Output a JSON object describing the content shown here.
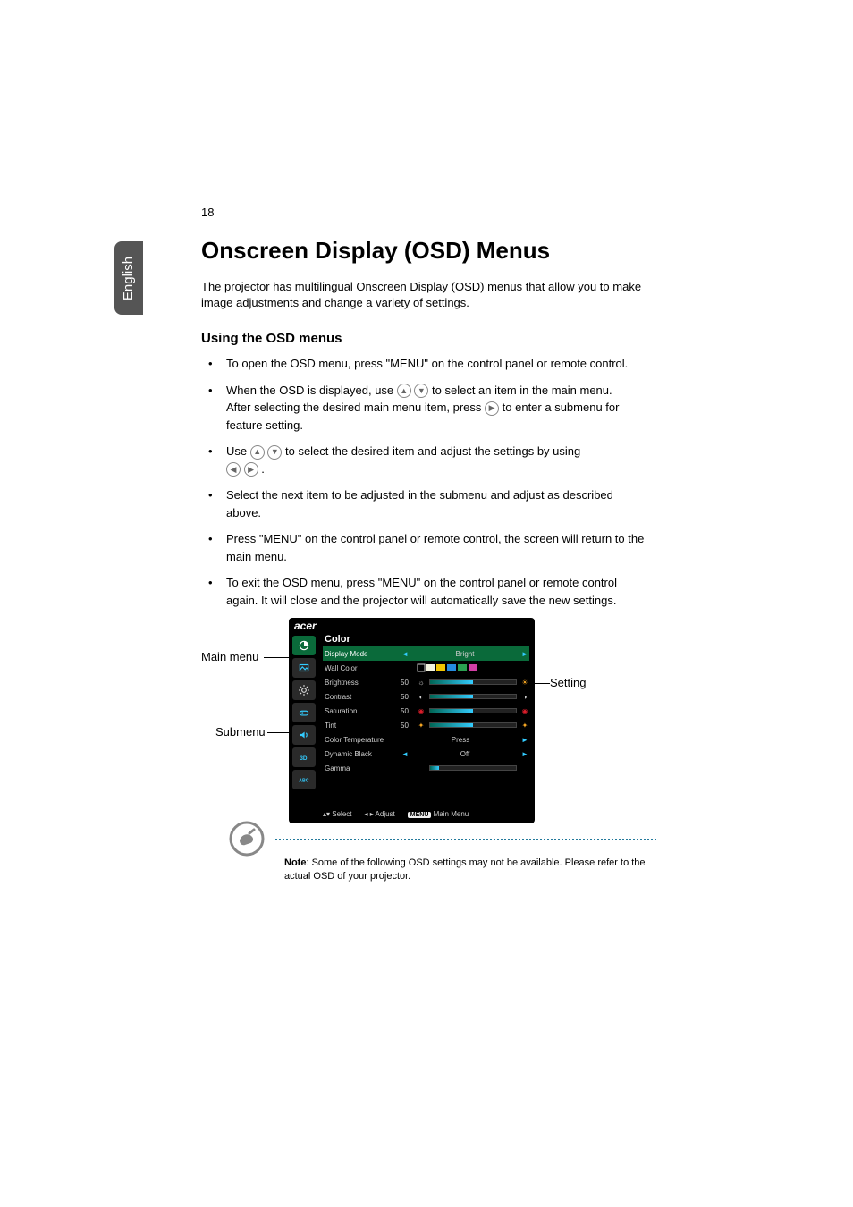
{
  "page_number": "18",
  "language_tab": "English",
  "heading": "Onscreen Display (OSD) Menus",
  "intro": "The projector has multilingual Onscreen Display (OSD) menus that allow you to make image adjustments and change a variety of settings.",
  "subheading": "Using the OSD menus",
  "bullets": {
    "b1": "To open the OSD menu, press \"MENU\" on the control panel or remote control.",
    "b2a": "When the OSD is displayed, use ",
    "b2b": " to select an item in the main menu.",
    "b2c": "After selecting the desired main menu item, press ",
    "b2d": " to enter a submenu for feature setting.",
    "b3a": "Use ",
    "b3b": " to select the desired item and adjust the settings by using ",
    "b3c": ".",
    "b4": "Select the next item to be adjusted in the submenu and adjust as described above.",
    "b5": "Press \"MENU\" on the control panel or remote control, the screen will return to the main menu.",
    "b6": "To exit the OSD menu, press \"MENU\" on the control panel or remote control again. It will close and the projector will automatically save the new settings."
  },
  "callouts": {
    "main_menu": "Main menu",
    "submenu": "Submenu",
    "setting": "Setting"
  },
  "osd": {
    "logo": "acer",
    "title": "Color",
    "rows": {
      "display_mode": {
        "label": "Display Mode",
        "value": "Bright"
      },
      "wall_color": {
        "label": "Wall Color"
      },
      "brightness": {
        "label": "Brightness",
        "num": "50",
        "fill": 50
      },
      "contrast": {
        "label": "Contrast",
        "num": "50",
        "fill": 50
      },
      "saturation": {
        "label": "Saturation",
        "num": "50",
        "fill": 50
      },
      "tint": {
        "label": "Tint",
        "num": "50",
        "fill": 50
      },
      "color_temp": {
        "label": "Color Temperature",
        "value": "Press"
      },
      "dyn_black": {
        "label": "Dynamic Black",
        "value": "Off"
      },
      "gamma": {
        "label": "Gamma",
        "fill": 10
      }
    },
    "footer": {
      "select": "Select",
      "adjust": "Adjust",
      "menu_key": "MENU",
      "main_menu": "Main Menu"
    },
    "swatch_colors": [
      "#f5f5e0",
      "#f2c500",
      "#258be0",
      "#2aa050",
      "#d23ea5"
    ],
    "slider_icon_colors": {
      "brightness": [
        "#f5a623",
        "#f5a623"
      ],
      "contrast": [
        "#888888",
        "#dddddd"
      ],
      "saturation": [
        "#d91d2a",
        "#d91d2a"
      ],
      "tint": [
        "#f5a623",
        "#f5a623"
      ]
    },
    "sidebar_active": 0
  },
  "note": {
    "bold": "Note",
    "text": ": Some of the following OSD settings may not be available. Please refer to the actual OSD of your projector."
  },
  "colors": {
    "tab_bg": "#555555",
    "osd_bg": "#000000",
    "osd_accent": "#0a6a3a",
    "note_dash": "#247a9c"
  }
}
